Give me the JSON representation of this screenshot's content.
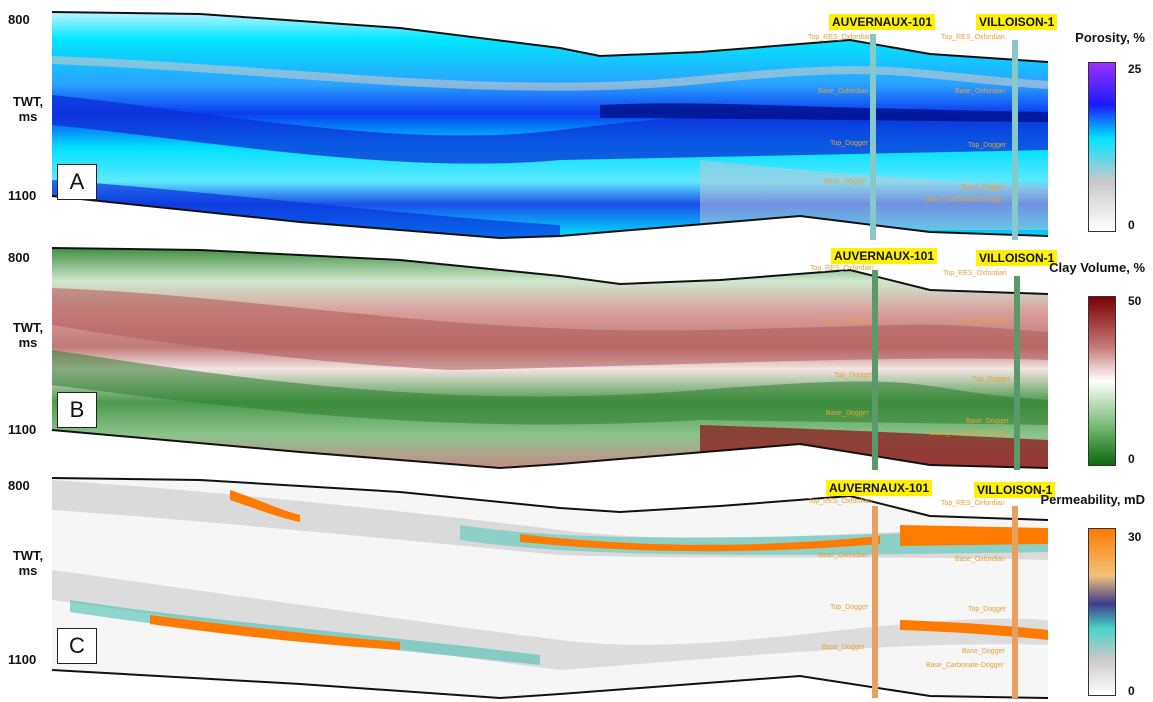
{
  "panels": [
    {
      "letter": "A",
      "tick_top": "800",
      "tick_bottom": "1100",
      "axis_title": "TWT, ms",
      "wells": [
        {
          "name": "AUVERNAUX-101",
          "horizons": [
            "Top_RES_Oxfordian",
            "Base_Oxfordian",
            "Top_Dogger",
            "Base_Dogger"
          ]
        },
        {
          "name": "VILLOISON-1",
          "horizons": [
            "Top_RES_Oxfordian",
            "Base_Oxfordian",
            "Top_Dogger",
            "Base_Dogger",
            "Base_Carbonate-Dogger"
          ]
        }
      ],
      "colorbar": {
        "title": "Porosity, %",
        "max": "25",
        "min": "0",
        "colors": [
          "#9b30ff",
          "#1a1aff",
          "#00e5ff",
          "#c8c8c8",
          "#ffffff"
        ]
      }
    },
    {
      "letter": "B",
      "tick_top": "800",
      "tick_bottom": "1100",
      "axis_title": "TWT, ms",
      "wells": [
        {
          "name": "AUVERNAUX-101",
          "horizons": [
            "Top_RES_Oxfordian",
            "Base_Oxfordian",
            "Top_Dogger",
            "Base_Dogger"
          ]
        },
        {
          "name": "VILLOISON-1",
          "horizons": [
            "Top_RES_Oxfordian",
            "Base_Oxfordian",
            "Top_Dogger",
            "Base_Dogger",
            "Base_Carbonate-Dogger"
          ]
        }
      ],
      "colorbar": {
        "title": "Clay Volume, %",
        "max": "50",
        "min": "0",
        "colors": [
          "#7a0000",
          "#c87a7a",
          "#ffffff",
          "#7fbf7f",
          "#0a6a0a"
        ]
      }
    },
    {
      "letter": "C",
      "tick_top": "800",
      "tick_bottom": "1100",
      "axis_title": "TWT, ms",
      "wells": [
        {
          "name": "AUVERNAUX-101",
          "horizons": [
            "Top_RES_Oxfordian",
            "Base_Oxfordian",
            "Top_Dogger",
            "Base_Dogger"
          ]
        },
        {
          "name": "VILLOISON-1",
          "horizons": [
            "Top_RES_Oxfordian",
            "Base_Oxfordian",
            "Top_Dogger",
            "Base_Dogger",
            "Base_Carbonate-Dogger"
          ]
        }
      ],
      "colorbar": {
        "title": "Permeability, mD",
        "max": "30",
        "min": "0",
        "colors": [
          "#ff7b00",
          "#f2c27a",
          "#3c3c8c",
          "#49d4c8",
          "#c8c8c8",
          "#ffffff"
        ]
      }
    }
  ]
}
